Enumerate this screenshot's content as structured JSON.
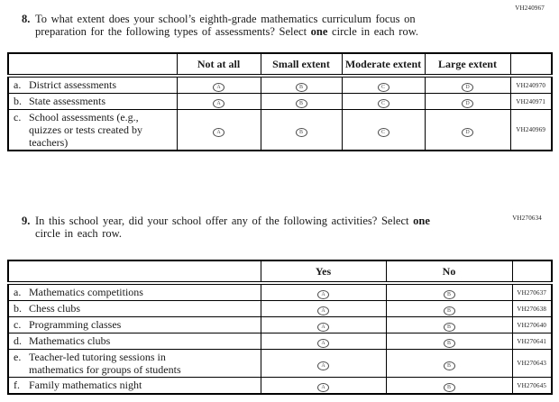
{
  "q8": {
    "number": "8.",
    "code": "VH240967",
    "line1": "To what extent does your school’s eighth-grade mathematics curriculum focus on",
    "line2_before_bold": "preparation for the following types of assessments? Select ",
    "bold_word": "one",
    "line2_after_bold": " circle in each row.",
    "table": {
      "columns": [
        "",
        "Not at all",
        "Small extent",
        "Moderate extent",
        "Large extent",
        ""
      ],
      "option_letters": [
        "A",
        "B",
        "C",
        "D"
      ],
      "rows": [
        {
          "letter": "a.",
          "label": "District assessments",
          "code": "VH240970"
        },
        {
          "letter": "b.",
          "label": "State assessments",
          "code": "VH240971"
        },
        {
          "letter": "c.",
          "label": "School assessments (e.g., quizzes or tests created by teachers)",
          "code": "VH240969"
        }
      ]
    }
  },
  "q9": {
    "number": "9.",
    "code": "VH270634",
    "line1_before_bold": "In this school year, did your school offer any of the following activities? Select ",
    "bold_word": "one",
    "line2": "circle in each row.",
    "table": {
      "columns": [
        "",
        "Yes",
        "No",
        ""
      ],
      "option_letters": [
        "A",
        "B"
      ],
      "rows": [
        {
          "letter": "a.",
          "label": "Mathematics competitions",
          "code": "VH270637"
        },
        {
          "letter": "b.",
          "label": "Chess clubs",
          "code": "VH270638"
        },
        {
          "letter": "c.",
          "label": "Programming classes",
          "code": "VH270640"
        },
        {
          "letter": "d.",
          "label": "Mathematics clubs",
          "code": "VH270641"
        },
        {
          "letter": "e.",
          "label": "Teacher-led tutoring sessions in mathematics for groups of students",
          "code": "VH270643"
        },
        {
          "letter": "f.",
          "label": "Family mathematics night",
          "code": "VH270645"
        }
      ]
    }
  }
}
